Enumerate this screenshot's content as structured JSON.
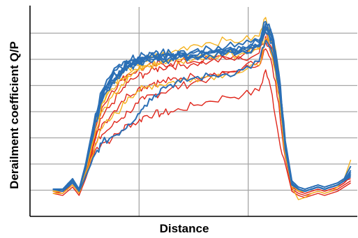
{
  "chart_data": {
    "type": "line",
    "title": "",
    "xlabel": "Distance",
    "ylabel": "Derailment coefficient Q/P",
    "xlim": [
      0,
      100
    ],
    "ylim": [
      0,
      100
    ],
    "grid": true,
    "x_tick_labels": [],
    "y_tick_labels": [],
    "colors": {
      "red": "#e0261b",
      "orange": "#f4b21f",
      "blue": "#2b6fb5",
      "grid": "#a6a6a6",
      "axis": "#000000"
    },
    "series": [
      {
        "color": "red",
        "x": [
          7,
          10,
          13,
          15,
          17,
          20,
          22,
          25,
          28,
          30,
          33,
          35,
          38,
          40,
          43,
          46,
          50,
          55,
          60,
          65,
          70,
          72,
          74,
          76,
          78,
          80,
          82,
          84,
          86,
          88,
          90,
          92,
          94,
          96,
          98
        ],
        "y": [
          11,
          10,
          14,
          10,
          18,
          32,
          35,
          37,
          41,
          44,
          45,
          48,
          49,
          49,
          50,
          51,
          53,
          55,
          57,
          58,
          60,
          70,
          58,
          38,
          25,
          12,
          10,
          9,
          10,
          11,
          10,
          11,
          12,
          14,
          16
        ]
      },
      {
        "color": "red",
        "x": [
          7,
          10,
          13,
          15,
          17,
          20,
          22,
          25,
          28,
          30,
          33,
          35,
          38,
          40,
          43,
          46,
          50,
          55,
          60,
          65,
          70,
          72,
          74,
          76,
          78,
          80,
          82,
          84,
          86,
          88,
          90,
          92,
          94,
          96,
          98
        ],
        "y": [
          12,
          11,
          15,
          11,
          19,
          34,
          39,
          43,
          47,
          50,
          54,
          56,
          58,
          59,
          61,
          62,
          64,
          66,
          68,
          71,
          74,
          80,
          72,
          54,
          28,
          13,
          11,
          10,
          11,
          12,
          11,
          12,
          13,
          15,
          17
        ]
      },
      {
        "color": "red",
        "x": [
          7,
          10,
          13,
          15,
          17,
          20,
          22,
          25,
          28,
          30,
          33,
          35,
          38,
          40,
          43,
          46,
          50,
          55,
          60,
          65,
          70,
          72,
          74,
          76,
          78,
          80,
          82,
          84,
          86,
          88,
          90,
          92,
          94,
          96,
          98
        ],
        "y": [
          12,
          11,
          15,
          11,
          20,
          37,
          44,
          49,
          55,
          58,
          61,
          62,
          64,
          64,
          65,
          66,
          67,
          68,
          69,
          70,
          72,
          83,
          76,
          60,
          30,
          14,
          12,
          11,
          12,
          13,
          12,
          13,
          14,
          16,
          20
        ]
      },
      {
        "color": "red",
        "x": [
          7,
          10,
          13,
          15,
          17,
          20,
          22,
          25,
          28,
          30,
          33,
          35,
          38,
          40,
          43,
          46,
          50,
          55,
          60,
          65,
          70,
          72,
          74,
          76,
          78,
          80,
          82,
          84,
          86,
          88,
          90,
          92,
          94,
          96,
          98
        ],
        "y": [
          12,
          11,
          16,
          12,
          20,
          38,
          47,
          54,
          60,
          64,
          67,
          68,
          70,
          71,
          72,
          72,
          73,
          74,
          75,
          75,
          78,
          86,
          78,
          62,
          32,
          15,
          12,
          11,
          12,
          13,
          12,
          13,
          14,
          16,
          19
        ]
      },
      {
        "color": "red",
        "x": [
          7,
          10,
          13,
          15,
          17,
          20,
          22,
          25,
          28,
          30,
          33,
          35,
          38,
          40,
          43,
          46,
          50,
          55,
          60,
          65,
          70,
          72,
          74,
          76,
          78,
          80,
          82,
          84,
          86,
          88,
          90,
          92,
          94,
          96,
          98
        ],
        "y": [
          12,
          12,
          16,
          12,
          21,
          42,
          52,
          60,
          65,
          68,
          70,
          71,
          72,
          73,
          73,
          74,
          74,
          75,
          76,
          77,
          80,
          88,
          80,
          65,
          34,
          15,
          13,
          12,
          13,
          14,
          13,
          14,
          15,
          17,
          18
        ]
      },
      {
        "color": "orange",
        "x": [
          7,
          10,
          13,
          15,
          17,
          20,
          22,
          25,
          28,
          30,
          33,
          35,
          38,
          40,
          43,
          46,
          50,
          55,
          60,
          65,
          70,
          72,
          74,
          76,
          78,
          80,
          82,
          84,
          86,
          88,
          90,
          92,
          94,
          96,
          98
        ],
        "y": [
          11,
          11,
          15,
          11,
          19,
          35,
          42,
          47,
          52,
          57,
          60,
          61,
          63,
          63,
          64,
          65,
          66,
          67,
          68,
          69,
          72,
          85,
          76,
          58,
          29,
          14,
          8,
          9,
          11,
          12,
          11,
          12,
          14,
          18,
          27
        ]
      },
      {
        "color": "orange",
        "x": [
          7,
          10,
          13,
          15,
          17,
          20,
          22,
          25,
          28,
          30,
          33,
          35,
          38,
          40,
          43,
          46,
          50,
          55,
          60,
          65,
          70,
          72,
          74,
          76,
          78,
          80,
          82,
          84,
          86,
          88,
          90,
          92,
          94,
          96,
          98
        ],
        "y": [
          12,
          12,
          16,
          12,
          21,
          40,
          50,
          57,
          63,
          67,
          70,
          72,
          74,
          74,
          75,
          75,
          76,
          77,
          78,
          79,
          80,
          88,
          82,
          64,
          32,
          15,
          12,
          12,
          13,
          14,
          13,
          14,
          15,
          17,
          20
        ]
      },
      {
        "color": "orange",
        "x": [
          7,
          10,
          13,
          15,
          17,
          20,
          22,
          25,
          28,
          30,
          33,
          35,
          38,
          40,
          43,
          46,
          50,
          55,
          60,
          65,
          70,
          72,
          74,
          76,
          78,
          80,
          82,
          84,
          86,
          88,
          90,
          92,
          94,
          96,
          98
        ],
        "y": [
          12,
          12,
          17,
          12,
          22,
          44,
          55,
          63,
          68,
          71,
          72,
          74,
          76,
          77,
          78,
          80,
          82,
          83,
          84,
          84,
          86,
          95,
          87,
          70,
          36,
          16,
          13,
          12,
          13,
          14,
          13,
          14,
          15,
          17,
          19
        ]
      },
      {
        "color": "orange",
        "x": [
          7,
          10,
          13,
          15,
          17,
          20,
          22,
          25,
          28,
          30,
          33,
          35,
          38,
          40,
          43,
          46,
          50,
          55,
          60,
          65,
          70,
          72,
          74,
          76,
          78,
          80,
          82,
          84,
          86,
          88,
          90,
          92,
          94,
          96,
          98
        ],
        "y": [
          12,
          12,
          16,
          12,
          22,
          43,
          54,
          61,
          66,
          68,
          70,
          71,
          73,
          73,
          74,
          74,
          75,
          76,
          77,
          78,
          80,
          92,
          85,
          68,
          35,
          15,
          12,
          12,
          13,
          14,
          13,
          14,
          15,
          17,
          20
        ]
      },
      {
        "color": "blue",
        "x": [
          7,
          10,
          13,
          15,
          17,
          20,
          22,
          25,
          28,
          30,
          33,
          35,
          38,
          40,
          43,
          46,
          50,
          55,
          60,
          65,
          70,
          72,
          74,
          76,
          78,
          80,
          82,
          84,
          86,
          88,
          90,
          92,
          94,
          96,
          98
        ],
        "y": [
          13,
          12,
          16,
          12,
          19,
          30,
          35,
          38,
          41,
          44,
          49,
          53,
          58,
          61,
          63,
          64,
          66,
          67,
          68,
          70,
          74,
          84,
          78,
          62,
          32,
          15,
          13,
          12,
          13,
          14,
          13,
          14,
          15,
          17,
          19
        ]
      },
      {
        "color": "blue",
        "x": [
          7,
          10,
          13,
          15,
          17,
          20,
          22,
          25,
          28,
          30,
          33,
          35,
          38,
          40,
          43,
          46,
          50,
          55,
          60,
          65,
          70,
          72,
          74,
          76,
          78,
          80,
          82,
          84,
          86,
          88,
          90,
          92,
          94,
          96,
          98
        ],
        "y": [
          13,
          12,
          17,
          13,
          23,
          45,
          56,
          64,
          69,
          72,
          74,
          75,
          76,
          76,
          77,
          77,
          77,
          78,
          79,
          80,
          82,
          90,
          84,
          66,
          34,
          16,
          13,
          12,
          13,
          14,
          13,
          14,
          15,
          17,
          20
        ]
      },
      {
        "color": "blue",
        "x": [
          7,
          10,
          13,
          15,
          17,
          20,
          22,
          25,
          28,
          30,
          33,
          35,
          38,
          40,
          43,
          46,
          50,
          55,
          60,
          65,
          70,
          72,
          74,
          76,
          78,
          80,
          82,
          84,
          86,
          88,
          90,
          92,
          94,
          96,
          98
        ],
        "y": [
          13,
          12,
          17,
          13,
          24,
          47,
          58,
          66,
          70,
          73,
          74,
          75,
          76,
          76,
          76,
          77,
          77,
          78,
          79,
          80,
          82,
          91,
          85,
          67,
          35,
          16,
          13,
          12,
          13,
          14,
          13,
          14,
          15,
          17,
          21
        ]
      },
      {
        "color": "blue",
        "x": [
          7,
          10,
          13,
          15,
          17,
          20,
          22,
          25,
          28,
          30,
          33,
          35,
          38,
          40,
          43,
          46,
          50,
          55,
          60,
          65,
          70,
          72,
          74,
          76,
          78,
          80,
          82,
          84,
          86,
          88,
          90,
          92,
          94,
          96,
          98
        ],
        "y": [
          13,
          13,
          17,
          13,
          24,
          48,
          59,
          67,
          71,
          73,
          75,
          76,
          77,
          77,
          77,
          78,
          78,
          79,
          80,
          81,
          83,
          92,
          86,
          68,
          35,
          16,
          13,
          12,
          13,
          14,
          13,
          14,
          15,
          17,
          22
        ]
      },
      {
        "color": "blue",
        "x": [
          7,
          10,
          13,
          15,
          17,
          20,
          22,
          25,
          28,
          30,
          33,
          35,
          38,
          40,
          43,
          46,
          50,
          55,
          60,
          65,
          70,
          72,
          74,
          76,
          78,
          80,
          82,
          84,
          86,
          88,
          90,
          92,
          94,
          96,
          98
        ],
        "y": [
          13,
          12,
          17,
          13,
          23,
          46,
          57,
          65,
          69,
          72,
          74,
          75,
          75,
          76,
          76,
          76,
          77,
          77,
          78,
          79,
          81,
          89,
          84,
          66,
          34,
          16,
          13,
          12,
          13,
          14,
          13,
          14,
          15,
          17,
          20
        ]
      },
      {
        "color": "blue",
        "x": [
          7,
          10,
          13,
          15,
          17,
          20,
          22,
          25,
          28,
          30,
          33,
          35,
          38,
          40,
          43,
          46,
          50,
          55,
          60,
          65,
          70,
          72,
          74,
          76,
          78,
          80,
          82,
          84,
          86,
          88,
          90,
          92,
          94,
          96,
          98
        ],
        "y": [
          13,
          13,
          18,
          13,
          25,
          49,
          60,
          68,
          72,
          74,
          76,
          77,
          78,
          78,
          78,
          79,
          79,
          80,
          81,
          82,
          84,
          93,
          87,
          69,
          36,
          17,
          14,
          13,
          14,
          15,
          14,
          15,
          16,
          18,
          24
        ]
      },
      {
        "color": "blue",
        "x": [
          7,
          10,
          13,
          15,
          17,
          20,
          22,
          25,
          28,
          30,
          33,
          35,
          38,
          40,
          43,
          46,
          50,
          55,
          60,
          65,
          70,
          72,
          74,
          76,
          78,
          80,
          82,
          84,
          86,
          88,
          90,
          92,
          94,
          96,
          98
        ],
        "y": [
          13,
          12,
          17,
          13,
          23,
          45,
          55,
          63,
          68,
          71,
          73,
          74,
          75,
          75,
          75,
          76,
          76,
          77,
          78,
          79,
          81,
          88,
          83,
          65,
          33,
          16,
          13,
          12,
          13,
          14,
          13,
          14,
          15,
          17,
          19
        ]
      }
    ]
  }
}
